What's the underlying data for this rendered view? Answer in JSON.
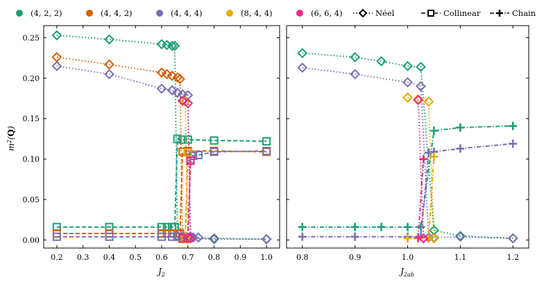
{
  "legend": {
    "systems": [
      {
        "label": "(4, 2, 2)",
        "color": "#1b9e77"
      },
      {
        "label": "(4, 4, 2)",
        "color": "#d95f02"
      },
      {
        "label": "(4, 4, 4)",
        "color": "#7570b3"
      },
      {
        "label": "(8, 4, 4)",
        "color": "#e6ab02"
      },
      {
        "label": "(6, 6, 4)",
        "color": "#e7298a"
      }
    ],
    "orders": [
      {
        "label": "Néel",
        "marker": "diamond",
        "dash": "dotted"
      },
      {
        "label": "Collinear",
        "marker": "square",
        "dash": "dashed"
      },
      {
        "label": "Chain",
        "marker": "plus",
        "dash": "dashdot"
      }
    ]
  },
  "chart_data": [
    {
      "type": "line",
      "xlabel": "J_2",
      "ylabel": "m^2(Q)",
      "xlim": [
        0.15,
        1.05
      ],
      "ylim": [
        -0.01,
        0.265
      ],
      "xticks": [
        0.2,
        0.3,
        0.4,
        0.5,
        0.6,
        0.7,
        0.8,
        0.9,
        1.0
      ],
      "xtick_labels": [
        "0.2",
        "0.3",
        "0.4",
        "0.5",
        "0.6",
        "0.7",
        "0.8",
        "0.9",
        "1.0"
      ],
      "yticks": [
        0.0,
        0.05,
        0.1,
        0.15,
        0.2,
        0.25
      ],
      "ytick_labels": [
        "0.00",
        "0.05",
        "0.10",
        "0.15",
        "0.20",
        "0.25"
      ],
      "series": [
        {
          "system": "(4, 2, 2)",
          "order": "Néel",
          "x": [
            0.2,
            0.4,
            0.6,
            0.62,
            0.64,
            0.65,
            0.66,
            0.68,
            0.7,
            0.8,
            1.0
          ],
          "y": [
            0.253,
            0.248,
            0.242,
            0.241,
            0.24,
            0.24,
            0.005,
            0.003,
            0.002,
            0.001,
            0.001
          ]
        },
        {
          "system": "(4, 2, 2)",
          "order": "Collinear",
          "x": [
            0.2,
            0.4,
            0.6,
            0.62,
            0.64,
            0.65,
            0.66,
            0.68,
            0.7,
            0.8,
            1.0
          ],
          "y": [
            0.016,
            0.016,
            0.016,
            0.016,
            0.016,
            0.016,
            0.125,
            0.124,
            0.124,
            0.123,
            0.122
          ]
        },
        {
          "system": "(4, 4, 2)",
          "order": "Néel",
          "x": [
            0.2,
            0.4,
            0.6,
            0.62,
            0.64,
            0.66,
            0.67,
            0.68,
            0.7,
            0.8,
            1.0
          ],
          "y": [
            0.226,
            0.217,
            0.207,
            0.205,
            0.203,
            0.201,
            0.199,
            0.003,
            0.002,
            0.002,
            0.001
          ]
        },
        {
          "system": "(4, 4, 2)",
          "order": "Collinear",
          "x": [
            0.2,
            0.4,
            0.6,
            0.62,
            0.64,
            0.66,
            0.67,
            0.68,
            0.7,
            0.8,
            1.0
          ],
          "y": [
            0.008,
            0.008,
            0.008,
            0.008,
            0.008,
            0.008,
            0.008,
            0.109,
            0.11,
            0.11,
            0.109
          ]
        },
        {
          "system": "(4, 4, 4)",
          "order": "Néel",
          "x": [
            0.2,
            0.4,
            0.6,
            0.64,
            0.66,
            0.68,
            0.7,
            0.71,
            0.72,
            0.74,
            0.8,
            1.0
          ],
          "y": [
            0.215,
            0.205,
            0.187,
            0.185,
            0.182,
            0.18,
            0.179,
            0.004,
            0.003,
            0.003,
            0.002,
            0.001
          ]
        },
        {
          "system": "(4, 4, 4)",
          "order": "Collinear",
          "x": [
            0.2,
            0.4,
            0.6,
            0.64,
            0.66,
            0.68,
            0.7,
            0.71,
            0.72,
            0.74,
            0.8,
            1.0
          ],
          "y": [
            0.004,
            0.004,
            0.004,
            0.004,
            0.004,
            0.004,
            0.004,
            0.1,
            0.104,
            0.105,
            0.109,
            0.11
          ]
        },
        {
          "system": "(8, 4, 4)",
          "order": "Néel",
          "x": [
            0.68,
            0.69,
            0.7
          ],
          "y": [
            0.172,
            0.171,
            0.001
          ]
        },
        {
          "system": "(8, 4, 4)",
          "order": "Collinear",
          "x": [
            0.68,
            0.69,
            0.7
          ],
          "y": [
            0.001,
            0.001,
            0.108
          ]
        },
        {
          "system": "(6, 6, 4)",
          "order": "Néel",
          "x": [
            0.68,
            0.7,
            0.71
          ],
          "y": [
            0.172,
            0.169,
            0.002
          ]
        },
        {
          "system": "(6, 6, 4)",
          "order": "Collinear",
          "x": [
            0.68,
            0.7,
            0.71
          ],
          "y": [
            0.002,
            0.002,
            0.098
          ]
        }
      ]
    },
    {
      "type": "line",
      "xlabel": "J_2ab",
      "ylabel": "",
      "xlim": [
        0.77,
        1.23
      ],
      "ylim": [
        -0.01,
        0.265
      ],
      "xticks": [
        0.8,
        0.9,
        1.0,
        1.1,
        1.2
      ],
      "xtick_labels": [
        "0.8",
        "0.9",
        "1.0",
        "1.1",
        "1.2"
      ],
      "yticks": [
        0.0,
        0.05,
        0.1,
        0.15,
        0.2,
        0.25
      ],
      "ytick_labels": [],
      "series": [
        {
          "system": "(4, 2, 2)",
          "order": "Néel",
          "x": [
            0.8,
            0.9,
            0.95,
            1.0,
            1.025,
            1.05,
            1.1,
            1.2
          ],
          "y": [
            0.231,
            0.226,
            0.221,
            0.215,
            0.214,
            0.012,
            0.005,
            0.002
          ]
        },
        {
          "system": "(4, 2, 2)",
          "order": "Chain",
          "x": [
            0.8,
            0.9,
            0.95,
            1.0,
            1.025,
            1.05,
            1.1,
            1.2
          ],
          "y": [
            0.016,
            0.016,
            0.016,
            0.016,
            0.016,
            0.135,
            0.139,
            0.141
          ]
        },
        {
          "system": "(4, 4, 4)",
          "order": "Néel",
          "x": [
            0.8,
            0.9,
            1.0,
            1.025,
            1.04,
            1.05,
            1.1,
            1.2
          ],
          "y": [
            0.213,
            0.205,
            0.195,
            0.19,
            0.003,
            0.003,
            0.004,
            0.002
          ]
        },
        {
          "system": "(4, 4, 4)",
          "order": "Chain",
          "x": [
            0.8,
            0.9,
            1.0,
            1.025,
            1.04,
            1.05,
            1.1,
            1.2
          ],
          "y": [
            0.004,
            0.004,
            0.004,
            0.004,
            0.108,
            0.109,
            0.113,
            0.119
          ]
        },
        {
          "system": "(8, 4, 4)",
          "order": "Néel",
          "x": [
            1.0,
            1.02,
            1.04,
            1.05
          ],
          "y": [
            0.176,
            0.174,
            0.171,
            0.002
          ]
        },
        {
          "system": "(8, 4, 4)",
          "order": "Chain",
          "x": [
            1.0,
            1.02,
            1.04,
            1.05
          ],
          "y": [
            0.002,
            0.002,
            0.002,
            0.103
          ]
        },
        {
          "system": "(6, 6, 4)",
          "order": "Néel",
          "x": [
            1.02,
            1.03
          ],
          "y": [
            0.173,
            0.002
          ]
        },
        {
          "system": "(6, 6, 4)",
          "order": "Chain",
          "x": [
            1.02,
            1.03
          ],
          "y": [
            0.003,
            0.1
          ]
        }
      ]
    }
  ]
}
